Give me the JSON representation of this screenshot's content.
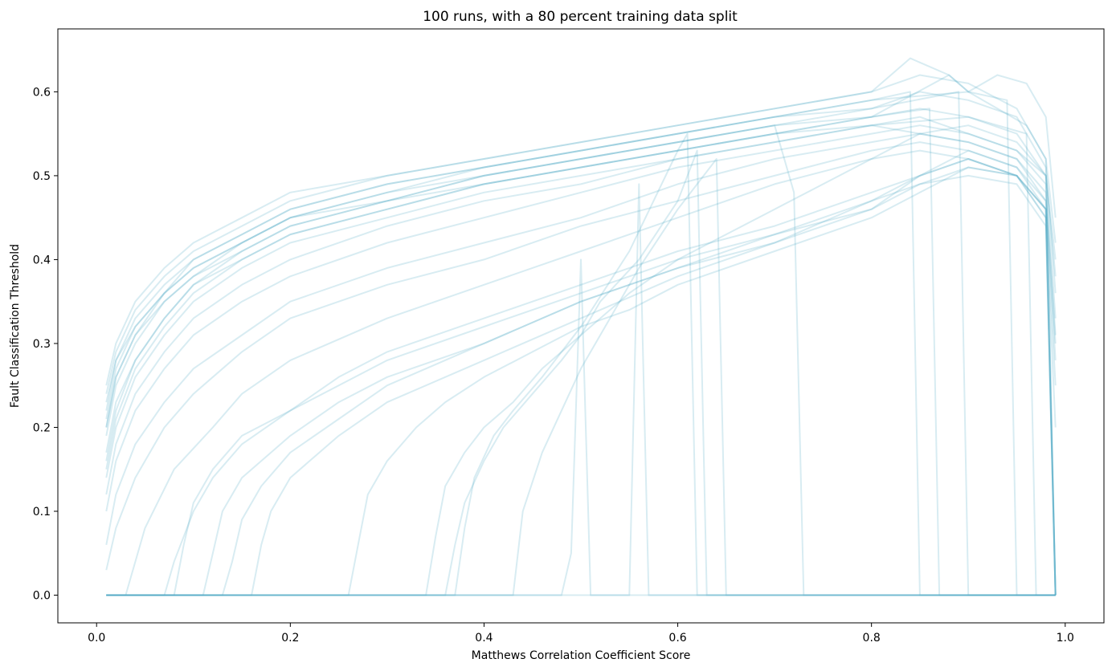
{
  "chart_data": {
    "type": "line",
    "title": "100 runs, with a 80 percent training data split",
    "xlabel": "Matthews Correlation Coefficient Score",
    "ylabel": "Fault Classification Threshold",
    "xlim": [
      -0.04,
      1.04
    ],
    "ylim": [
      -0.033,
      0.675
    ],
    "xticks": [
      0.0,
      0.2,
      0.4,
      0.6,
      0.8,
      1.0
    ],
    "xtick_labels": [
      "0.0",
      "0.2",
      "0.4",
      "0.6",
      "0.8",
      "1.0"
    ],
    "yticks": [
      0.0,
      0.1,
      0.2,
      0.3,
      0.4,
      0.5,
      0.6
    ],
    "ytick_labels": [
      "0.0",
      "0.1",
      "0.2",
      "0.3",
      "0.4",
      "0.5",
      "0.6"
    ],
    "grid": false,
    "legend": "none",
    "line_color": "#4fa8c3",
    "line_alpha": 0.22,
    "series_note_count": 100,
    "series": [
      {
        "x": [
          0.01,
          0.02,
          0.04,
          0.07,
          0.1,
          0.15,
          0.2,
          0.3,
          0.4,
          0.5,
          0.6,
          0.7,
          0.8,
          0.85,
          0.9,
          0.95,
          0.98,
          0.99
        ],
        "values": [
          0.2,
          0.26,
          0.31,
          0.36,
          0.39,
          0.42,
          0.45,
          0.48,
          0.5,
          0.52,
          0.54,
          0.56,
          0.57,
          0.58,
          0.57,
          0.55,
          0.5,
          0.4
        ]
      },
      {
        "x": [
          0.01,
          0.02,
          0.04,
          0.07,
          0.1,
          0.15,
          0.2,
          0.3,
          0.4,
          0.5,
          0.6,
          0.7,
          0.8,
          0.85,
          0.9,
          0.95,
          0.98,
          0.99
        ],
        "values": [
          0.24,
          0.29,
          0.34,
          0.38,
          0.41,
          0.44,
          0.47,
          0.5,
          0.52,
          0.54,
          0.56,
          0.58,
          0.6,
          0.62,
          0.61,
          0.58,
          0.52,
          0.42
        ]
      },
      {
        "x": [
          0.01,
          0.02,
          0.04,
          0.07,
          0.1,
          0.15,
          0.2,
          0.3,
          0.4,
          0.5,
          0.6,
          0.7,
          0.8,
          0.85,
          0.9,
          0.95,
          0.98,
          0.99
        ],
        "values": [
          0.17,
          0.23,
          0.28,
          0.33,
          0.37,
          0.4,
          0.43,
          0.46,
          0.49,
          0.51,
          0.53,
          0.55,
          0.56,
          0.57,
          0.55,
          0.53,
          0.49,
          0.33
        ]
      },
      {
        "x": [
          0.01,
          0.02,
          0.04,
          0.07,
          0.1,
          0.15,
          0.2,
          0.3,
          0.4,
          0.5,
          0.6,
          0.7,
          0.8,
          0.85,
          0.9,
          0.95,
          0.98,
          0.99
        ],
        "values": [
          0.14,
          0.2,
          0.26,
          0.31,
          0.35,
          0.39,
          0.42,
          0.45,
          0.48,
          0.5,
          0.52,
          0.54,
          0.56,
          0.55,
          0.54,
          0.52,
          0.47,
          0.3
        ]
      },
      {
        "x": [
          0.01,
          0.02,
          0.04,
          0.07,
          0.1,
          0.15,
          0.2,
          0.3,
          0.4,
          0.5,
          0.6,
          0.7,
          0.8,
          0.85,
          0.9,
          0.95,
          0.98,
          0.99
        ],
        "values": [
          0.22,
          0.28,
          0.33,
          0.37,
          0.4,
          0.43,
          0.46,
          0.49,
          0.51,
          0.53,
          0.55,
          0.57,
          0.58,
          0.6,
          0.59,
          0.57,
          0.51,
          0.36
        ]
      },
      {
        "x": [
          0.01,
          0.02,
          0.04,
          0.07,
          0.1,
          0.15,
          0.2,
          0.3,
          0.4,
          0.5,
          0.6,
          0.7,
          0.8,
          0.85,
          0.9,
          0.95,
          0.98,
          0.99
        ],
        "values": [
          0.1,
          0.16,
          0.22,
          0.27,
          0.31,
          0.35,
          0.38,
          0.42,
          0.45,
          0.48,
          0.51,
          0.53,
          0.55,
          0.56,
          0.55,
          0.53,
          0.5,
          0.38
        ]
      },
      {
        "x": [
          0.01,
          0.02,
          0.04,
          0.07,
          0.1,
          0.15,
          0.2,
          0.3,
          0.4,
          0.5,
          0.6,
          0.7,
          0.8,
          0.85,
          0.9,
          0.95,
          0.98,
          0.99
        ],
        "values": [
          0.06,
          0.12,
          0.18,
          0.23,
          0.27,
          0.31,
          0.35,
          0.39,
          0.42,
          0.45,
          0.49,
          0.52,
          0.54,
          0.55,
          0.54,
          0.52,
          0.48,
          0.31
        ]
      },
      {
        "x": [
          0.01,
          0.02,
          0.04,
          0.07,
          0.1,
          0.15,
          0.2,
          0.3,
          0.4,
          0.5,
          0.6,
          0.7,
          0.8,
          0.85,
          0.9,
          0.95,
          0.98,
          0.99
        ],
        "values": [
          0.03,
          0.08,
          0.14,
          0.2,
          0.24,
          0.29,
          0.33,
          0.37,
          0.4,
          0.44,
          0.47,
          0.5,
          0.53,
          0.54,
          0.53,
          0.51,
          0.47,
          0.28
        ]
      },
      {
        "x": [
          0.01,
          0.03,
          0.05,
          0.08,
          0.12,
          0.15,
          0.2,
          0.3,
          0.4,
          0.5,
          0.6,
          0.7,
          0.8,
          0.85,
          0.9,
          0.95,
          0.98,
          0.99
        ],
        "values": [
          0.0,
          0.0,
          0.08,
          0.15,
          0.2,
          0.24,
          0.28,
          0.33,
          0.37,
          0.41,
          0.45,
          0.49,
          0.52,
          0.53,
          0.52,
          0.5,
          0.46,
          0.25
        ]
      },
      {
        "x": [
          0.01,
          0.07,
          0.08,
          0.1,
          0.12,
          0.15,
          0.2,
          0.25,
          0.3,
          0.4,
          0.5,
          0.6,
          0.7,
          0.8,
          0.85,
          0.9,
          0.95,
          0.98,
          0.99
        ],
        "values": [
          0.0,
          0.0,
          0.04,
          0.1,
          0.14,
          0.18,
          0.22,
          0.26,
          0.29,
          0.33,
          0.37,
          0.41,
          0.44,
          0.48,
          0.5,
          0.52,
          0.5,
          0.45,
          0.2
        ]
      },
      {
        "x": [
          0.01,
          0.08,
          0.09,
          0.1,
          0.12,
          0.15,
          0.2,
          0.25,
          0.3,
          0.4,
          0.5,
          0.6,
          0.7,
          0.8,
          0.85,
          0.9,
          0.95,
          0.98,
          0.99
        ],
        "values": [
          0.0,
          0.0,
          0.06,
          0.11,
          0.15,
          0.19,
          0.22,
          0.25,
          0.28,
          0.32,
          0.36,
          0.4,
          0.43,
          0.47,
          0.49,
          0.5,
          0.49,
          0.44,
          0.0
        ]
      },
      {
        "x": [
          0.01,
          0.11,
          0.12,
          0.13,
          0.15,
          0.2,
          0.25,
          0.3,
          0.4,
          0.5,
          0.6,
          0.7,
          0.8,
          0.85,
          0.9,
          0.95,
          0.98,
          0.99
        ],
        "values": [
          0.0,
          0.0,
          0.05,
          0.1,
          0.14,
          0.19,
          0.23,
          0.26,
          0.3,
          0.35,
          0.39,
          0.43,
          0.46,
          0.5,
          0.52,
          0.5,
          0.46,
          0.0
        ]
      },
      {
        "x": [
          0.01,
          0.13,
          0.14,
          0.15,
          0.17,
          0.2,
          0.25,
          0.3,
          0.4,
          0.5,
          0.6,
          0.7,
          0.8,
          0.85,
          0.9,
          0.95,
          0.98,
          0.99
        ],
        "values": [
          0.0,
          0.0,
          0.04,
          0.09,
          0.13,
          0.17,
          0.21,
          0.25,
          0.3,
          0.35,
          0.39,
          0.42,
          0.47,
          0.5,
          0.53,
          0.51,
          0.46,
          0.0
        ]
      },
      {
        "x": [
          0.01,
          0.16,
          0.17,
          0.18,
          0.2,
          0.25,
          0.3,
          0.4,
          0.5,
          0.6,
          0.7,
          0.8,
          0.85,
          0.9,
          0.95,
          0.98,
          0.99
        ],
        "values": [
          0.0,
          0.0,
          0.06,
          0.1,
          0.14,
          0.19,
          0.23,
          0.28,
          0.33,
          0.38,
          0.42,
          0.46,
          0.49,
          0.51,
          0.5,
          0.45,
          0.0
        ]
      },
      {
        "x": [
          0.01,
          0.26,
          0.27,
          0.28,
          0.3,
          0.33,
          0.36,
          0.4,
          0.45,
          0.5,
          0.55,
          0.6,
          0.7,
          0.8,
          0.85,
          0.9,
          0.95,
          0.98,
          0.99
        ],
        "values": [
          0.0,
          0.0,
          0.06,
          0.12,
          0.16,
          0.2,
          0.23,
          0.26,
          0.29,
          0.32,
          0.34,
          0.37,
          0.41,
          0.45,
          0.48,
          0.51,
          0.5,
          0.46,
          0.0
        ]
      },
      {
        "x": [
          0.01,
          0.34,
          0.35,
          0.36,
          0.38,
          0.4,
          0.43,
          0.46,
          0.5,
          0.55,
          0.6,
          0.7,
          0.8,
          0.85,
          0.9,
          0.95,
          0.98,
          0.99
        ],
        "values": [
          0.0,
          0.0,
          0.07,
          0.13,
          0.17,
          0.2,
          0.23,
          0.27,
          0.31,
          0.36,
          0.4,
          0.46,
          0.52,
          0.55,
          0.56,
          0.54,
          0.5,
          0.0
        ]
      },
      {
        "x": [
          0.01,
          0.36,
          0.37,
          0.38,
          0.4,
          0.42,
          0.45,
          0.48,
          0.5,
          0.52,
          0.56,
          0.6,
          0.62,
          0.63,
          0.99
        ],
        "values": [
          0.0,
          0.0,
          0.06,
          0.11,
          0.16,
          0.2,
          0.24,
          0.28,
          0.31,
          0.35,
          0.4,
          0.47,
          0.53,
          0.0,
          0.0
        ]
      },
      {
        "x": [
          0.01,
          0.37,
          0.38,
          0.39,
          0.41,
          0.43,
          0.46,
          0.5,
          0.55,
          0.6,
          0.61,
          0.62,
          0.99
        ],
        "values": [
          0.0,
          0.0,
          0.08,
          0.14,
          0.19,
          0.22,
          0.26,
          0.32,
          0.41,
          0.53,
          0.55,
          0.0,
          0.0
        ]
      },
      {
        "x": [
          0.01,
          0.43,
          0.44,
          0.46,
          0.48,
          0.5,
          0.53,
          0.56,
          0.6,
          0.64,
          0.65,
          0.99
        ],
        "values": [
          0.0,
          0.0,
          0.1,
          0.17,
          0.22,
          0.27,
          0.33,
          0.39,
          0.46,
          0.52,
          0.0,
          0.0
        ]
      },
      {
        "x": [
          0.01,
          0.48,
          0.49,
          0.5,
          0.51,
          0.99
        ],
        "values": [
          0.0,
          0.0,
          0.05,
          0.4,
          0.0,
          0.0
        ]
      },
      {
        "x": [
          0.01,
          0.55,
          0.56,
          0.57,
          0.99
        ],
        "values": [
          0.0,
          0.0,
          0.49,
          0.0,
          0.0
        ]
      },
      {
        "x": [
          0.01,
          0.02,
          0.04,
          0.07,
          0.1,
          0.15,
          0.2,
          0.3,
          0.4,
          0.5,
          0.6,
          0.7,
          0.75,
          0.8,
          0.84,
          0.85,
          0.99
        ],
        "values": [
          0.19,
          0.25,
          0.3,
          0.35,
          0.38,
          0.42,
          0.45,
          0.48,
          0.51,
          0.53,
          0.55,
          0.57,
          0.58,
          0.59,
          0.6,
          0.0,
          0.0
        ]
      },
      {
        "x": [
          0.01,
          0.02,
          0.04,
          0.07,
          0.1,
          0.15,
          0.2,
          0.3,
          0.4,
          0.5,
          0.6,
          0.7,
          0.8,
          0.86,
          0.87,
          0.99
        ],
        "values": [
          0.15,
          0.21,
          0.27,
          0.32,
          0.36,
          0.4,
          0.43,
          0.46,
          0.49,
          0.51,
          0.53,
          0.55,
          0.57,
          0.58,
          0.0,
          0.0
        ]
      },
      {
        "x": [
          0.01,
          0.02,
          0.04,
          0.07,
          0.1,
          0.15,
          0.2,
          0.3,
          0.4,
          0.5,
          0.6,
          0.7,
          0.8,
          0.89,
          0.9,
          0.99
        ],
        "values": [
          0.23,
          0.28,
          0.32,
          0.36,
          0.39,
          0.42,
          0.45,
          0.47,
          0.5,
          0.52,
          0.54,
          0.56,
          0.58,
          0.6,
          0.0,
          0.0
        ]
      },
      {
        "x": [
          0.01,
          0.02,
          0.04,
          0.07,
          0.1,
          0.15,
          0.2,
          0.3,
          0.4,
          0.5,
          0.6,
          0.7,
          0.72,
          0.73,
          0.99
        ],
        "values": [
          0.16,
          0.22,
          0.28,
          0.33,
          0.37,
          0.41,
          0.44,
          0.47,
          0.5,
          0.52,
          0.54,
          0.56,
          0.48,
          0.0,
          0.0
        ]
      },
      {
        "x": [
          0.01,
          0.02,
          0.04,
          0.07,
          0.1,
          0.15,
          0.2,
          0.3,
          0.4,
          0.5,
          0.6,
          0.7,
          0.8,
          0.9,
          0.94,
          0.95,
          0.99
        ],
        "values": [
          0.21,
          0.27,
          0.32,
          0.36,
          0.4,
          0.43,
          0.46,
          0.49,
          0.51,
          0.53,
          0.55,
          0.57,
          0.59,
          0.6,
          0.59,
          0.0,
          0.0
        ]
      },
      {
        "x": [
          0.01,
          0.02,
          0.04,
          0.07,
          0.1,
          0.15,
          0.2,
          0.3,
          0.4,
          0.5,
          0.6,
          0.7,
          0.8,
          0.9,
          0.96,
          0.97,
          0.99
        ],
        "values": [
          0.12,
          0.18,
          0.24,
          0.29,
          0.33,
          0.37,
          0.4,
          0.44,
          0.47,
          0.49,
          0.52,
          0.54,
          0.56,
          0.57,
          0.55,
          0.0,
          0.0
        ]
      },
      {
        "x": [
          0.01,
          0.02,
          0.04,
          0.07,
          0.1,
          0.15,
          0.2,
          0.3,
          0.4,
          0.5,
          0.6,
          0.7,
          0.8,
          0.84,
          0.88,
          0.9,
          0.93,
          0.96,
          0.98,
          0.99
        ],
        "values": [
          0.25,
          0.3,
          0.35,
          0.39,
          0.42,
          0.45,
          0.48,
          0.5,
          0.52,
          0.54,
          0.56,
          0.58,
          0.6,
          0.64,
          0.62,
          0.6,
          0.62,
          0.61,
          0.57,
          0.45
        ]
      },
      {
        "x": [
          0.01,
          0.02,
          0.04,
          0.07,
          0.1,
          0.15,
          0.2,
          0.3,
          0.4,
          0.5,
          0.6,
          0.7,
          0.8,
          0.88,
          0.9,
          0.93,
          0.96,
          0.98,
          0.99
        ],
        "values": [
          0.2,
          0.26,
          0.31,
          0.35,
          0.38,
          0.41,
          0.44,
          0.47,
          0.49,
          0.51,
          0.53,
          0.55,
          0.57,
          0.62,
          0.6,
          0.58,
          0.56,
          0.52,
          0.0
        ]
      }
    ]
  }
}
